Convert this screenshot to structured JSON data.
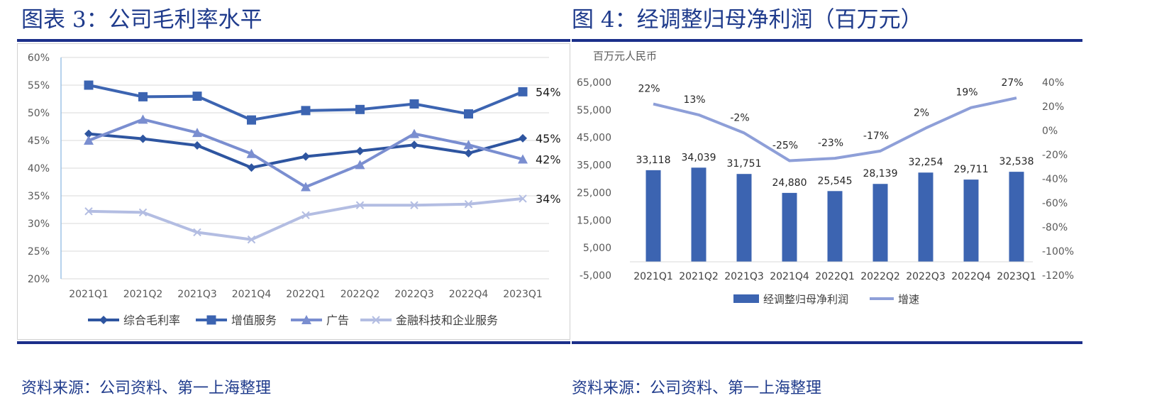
{
  "left": {
    "title": "图表 3：公司毛利率水平",
    "source": "资料来源：公司资料、第一上海整理"
  },
  "right": {
    "title": "图 4：经调整归母净利润（百万元）",
    "source": "资料来源：公司资料、第一上海整理"
  },
  "chart_data": [
    {
      "type": "line",
      "title": "",
      "categories": [
        "2021Q1",
        "2021Q2",
        "2021Q3",
        "2021Q4",
        "2022Q1",
        "2022Q2",
        "2022Q3",
        "2022Q4",
        "2023Q1"
      ],
      "ylim": [
        0.2,
        0.6
      ],
      "yticks": [
        "60%",
        "55%",
        "50%",
        "45%",
        "40%",
        "35%",
        "30%",
        "25%",
        "20%"
      ],
      "grid": true,
      "legend": "bottom",
      "series": [
        {
          "name": "综合毛利率",
          "marker": "diamond",
          "color": "#2e55a0",
          "values": [
            0.462,
            0.453,
            0.441,
            0.401,
            0.421,
            0.431,
            0.442,
            0.427,
            0.454
          ],
          "end_label": "45%"
        },
        {
          "name": "增值服务",
          "marker": "square",
          "color": "#3c64b1",
          "values": [
            0.55,
            0.529,
            0.53,
            0.487,
            0.504,
            0.506,
            0.516,
            0.498,
            0.538
          ],
          "end_label": "54%"
        },
        {
          "name": "广告",
          "marker": "triangle",
          "color": "#7a8ed0",
          "values": [
            0.45,
            0.488,
            0.464,
            0.426,
            0.366,
            0.406,
            0.462,
            0.442,
            0.416
          ],
          "end_label": "42%"
        },
        {
          "name": "金融科技和企业服务",
          "marker": "x",
          "color": "#b3bde2",
          "values": [
            0.322,
            0.32,
            0.284,
            0.271,
            0.315,
            0.333,
            0.333,
            0.335,
            0.345
          ],
          "end_label": "34%"
        }
      ]
    },
    {
      "type": "bar",
      "title": "",
      "ylabel": "百万元人民币",
      "categories": [
        "2021Q1",
        "2021Q2",
        "2021Q3",
        "2021Q4",
        "2022Q1",
        "2022Q2",
        "2022Q3",
        "2022Q4",
        "2023Q1"
      ],
      "ylim": [
        -5000,
        65000
      ],
      "yticks": [
        "65,000",
        "55,000",
        "45,000",
        "35,000",
        "25,000",
        "15,000",
        "5,000",
        "-5,000"
      ],
      "y2lim": [
        -1.2,
        0.4
      ],
      "y2ticks": [
        "40%",
        "20%",
        "0%",
        "-20%",
        "-40%",
        "-60%",
        "-80%",
        "-100%",
        "-120%"
      ],
      "legend": "bottom",
      "series": [
        {
          "name": "经调整归母净利润",
          "kind": "bar",
          "color": "#3c64b1",
          "values": [
            33118,
            34039,
            31751,
            24880,
            25545,
            28139,
            32254,
            29711,
            32538
          ],
          "labels": [
            "33,118",
            "34,039",
            "31,751",
            "24,880",
            "25,545",
            "28,139",
            "32,254",
            "29,711",
            "32,538"
          ]
        },
        {
          "name": "增速",
          "kind": "line",
          "axis": "right",
          "color": "#8e9fd8",
          "values": [
            0.22,
            0.13,
            -0.02,
            -0.25,
            -0.23,
            -0.17,
            0.02,
            0.19,
            0.27
          ],
          "labels": [
            "22%",
            "13%",
            "-2%",
            "-25%",
            "-23%",
            "-17%",
            "2%",
            "19%",
            "27%"
          ]
        }
      ]
    }
  ]
}
